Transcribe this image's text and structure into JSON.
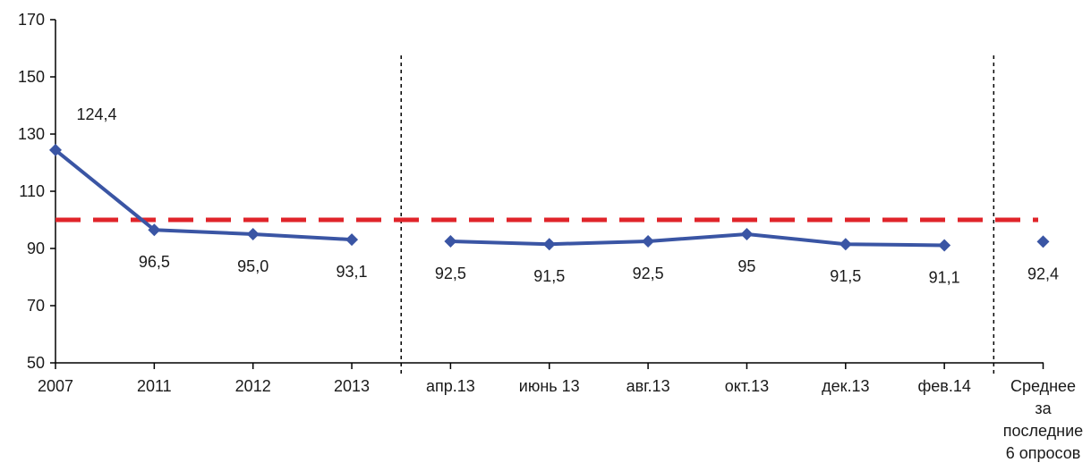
{
  "chart_data": {
    "type": "line",
    "title": "",
    "xlabel": "",
    "ylabel": "",
    "ylim": [
      50,
      170
    ],
    "y_ticks": [
      "50",
      "70",
      "90",
      "110",
      "130",
      "150",
      "170"
    ],
    "categories": [
      "2007",
      "2011",
      "2012",
      "2013",
      "апр.13",
      "июнь 13",
      "авг.13",
      "окт.13",
      "дек.13",
      "фев.14",
      "Среднее за последние 6 опросов"
    ],
    "category_lines": [
      [
        "2007"
      ],
      [
        "2011"
      ],
      [
        "2012"
      ],
      [
        "2013"
      ],
      [
        "апр.13"
      ],
      [
        "июнь 13"
      ],
      [
        "авг.13"
      ],
      [
        "окт.13"
      ],
      [
        "дек.13"
      ],
      [
        "фев.14"
      ],
      [
        "Среднее",
        "за",
        "последние",
        "6 опросов"
      ]
    ],
    "series": [
      {
        "values": [
          124.4,
          96.5,
          95.0,
          93.1,
          92.5,
          91.5,
          92.5,
          95,
          91.5,
          91.1,
          92.4
        ],
        "labels": [
          "124,4",
          "96,5",
          "95,0",
          "93,1",
          "92,5",
          "91,5",
          "92,5",
          "95",
          "91,5",
          "91,1",
          "92,4"
        ],
        "segments": [
          [
            0,
            3
          ],
          [
            4,
            9
          ],
          [
            10,
            10
          ]
        ],
        "color": "#3a55a4"
      }
    ],
    "reference_line": {
      "value": 100,
      "color": "#e0242a",
      "style": "dashed"
    },
    "separators_after_index": [
      3,
      9
    ],
    "grid": false,
    "legend": "none"
  }
}
